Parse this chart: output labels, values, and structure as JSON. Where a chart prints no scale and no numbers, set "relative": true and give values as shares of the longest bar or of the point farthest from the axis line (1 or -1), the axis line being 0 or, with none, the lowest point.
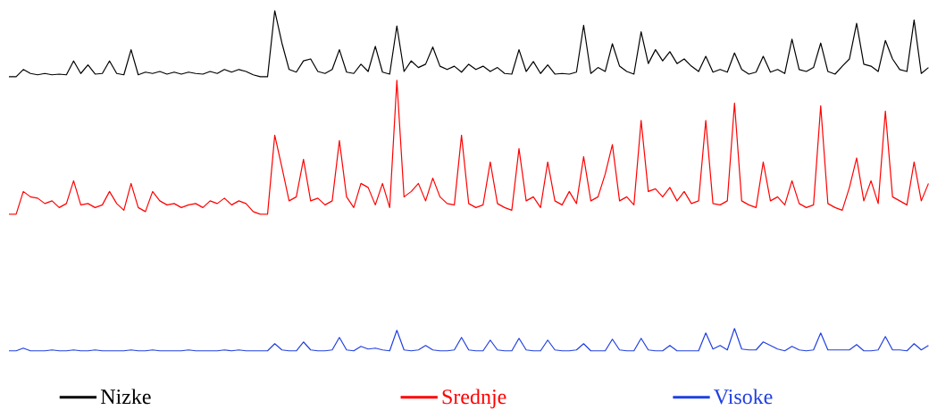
{
  "chart_data": [
    {
      "type": "line",
      "relative": true,
      "legend": "bottom",
      "categories": [
        null,
        null,
        null,
        null,
        null,
        null,
        null,
        null,
        null,
        null,
        null,
        null,
        null,
        null,
        null,
        null,
        null,
        null,
        null,
        null,
        null,
        null,
        null,
        null,
        null,
        null,
        null,
        null,
        null,
        null,
        null,
        null,
        null,
        null,
        null,
        null,
        null,
        null,
        null,
        null,
        null,
        null,
        null,
        null,
        null,
        null,
        null,
        null,
        null,
        null,
        null,
        null,
        null,
        null,
        null,
        null,
        null,
        null,
        null,
        null,
        null,
        null,
        null,
        null,
        null,
        null,
        null,
        null,
        null,
        null,
        null,
        null,
        null,
        null,
        null,
        null,
        null,
        null,
        null,
        null,
        null,
        null,
        null,
        null,
        null,
        null,
        null,
        null,
        null,
        null,
        null,
        null,
        null,
        null,
        null,
        null,
        null,
        null,
        null,
        null,
        null,
        null,
        null,
        null,
        null,
        null,
        null,
        null,
        null,
        null,
        null,
        null,
        null,
        null,
        null,
        null,
        null,
        null,
        null,
        null,
        null,
        null,
        null,
        null,
        null,
        null,
        null,
        null,
        null
      ],
      "series": [
        {
          "name": "Nizke",
          "color": "#000000",
          "values": [
            0,
            0,
            0.11,
            0.05,
            0.03,
            0.05,
            0.03,
            0.04,
            0.03,
            0.24,
            0.05,
            0.18,
            0.04,
            0.05,
            0.24,
            0.05,
            0.03,
            0.41,
            0.03,
            0.07,
            0.05,
            0.08,
            0.04,
            0.07,
            0.04,
            0.07,
            0.05,
            0.04,
            0.08,
            0.05,
            0.11,
            0.07,
            0.11,
            0.08,
            0.03,
            0,
            0,
            1,
            0.51,
            0.11,
            0.07,
            0.24,
            0.27,
            0.08,
            0.05,
            0.11,
            0.41,
            0.07,
            0.05,
            0.19,
            0.08,
            0.46,
            0.07,
            0.04,
            0.77,
            0.08,
            0.24,
            0.14,
            0.19,
            0.45,
            0.16,
            0.11,
            0.16,
            0.07,
            0.19,
            0.11,
            0.16,
            0.08,
            0.14,
            0.05,
            0.04,
            0.41,
            0.08,
            0.23,
            0.05,
            0.18,
            0.04,
            0.05,
            0.04,
            0.07,
            0.78,
            0.05,
            0.14,
            0.08,
            0.5,
            0.16,
            0.08,
            0.04,
            0.68,
            0.2,
            0.41,
            0.24,
            0.38,
            0.2,
            0.27,
            0.16,
            0.08,
            0.31,
            0.07,
            0.11,
            0.07,
            0.36,
            0.11,
            0.04,
            0.07,
            0.31,
            0.07,
            0.11,
            0.05,
            0.57,
            0.11,
            0.08,
            0.14,
            0.51,
            0.08,
            0.04,
            0.16,
            0.27,
            0.81,
            0.19,
            0.16,
            0.08,
            0.55,
            0.27,
            0.11,
            0.08,
            0.86,
            0.05,
            0.14
          ]
        }
      ]
    },
    {
      "type": "line",
      "relative": true,
      "legend": "bottom",
      "categories": [
        null,
        null,
        null,
        null,
        null,
        null,
        null,
        null,
        null,
        null,
        null,
        null,
        null,
        null,
        null,
        null,
        null,
        null,
        null,
        null,
        null,
        null,
        null,
        null,
        null,
        null,
        null,
        null,
        null,
        null,
        null,
        null,
        null,
        null,
        null,
        null,
        null,
        null,
        null,
        null,
        null,
        null,
        null,
        null,
        null,
        null,
        null,
        null,
        null,
        null,
        null,
        null,
        null,
        null,
        null,
        null,
        null,
        null,
        null,
        null,
        null,
        null,
        null,
        null,
        null,
        null,
        null,
        null,
        null,
        null,
        null,
        null,
        null,
        null,
        null,
        null,
        null,
        null,
        null,
        null,
        null,
        null,
        null,
        null,
        null,
        null,
        null,
        null,
        null,
        null,
        null,
        null,
        null,
        null,
        null,
        null,
        null,
        null,
        null,
        null,
        null,
        null,
        null,
        null,
        null,
        null,
        null,
        null,
        null,
        null,
        null,
        null,
        null,
        null,
        null,
        null,
        null,
        null,
        null,
        null,
        null,
        null,
        null,
        null,
        null,
        null,
        null,
        null,
        null
      ],
      "series": [
        {
          "name": "Srednje",
          "color": "#ff0000",
          "values": [
            0,
            0,
            0.17,
            0.13,
            0.12,
            0.08,
            0.1,
            0.05,
            0.08,
            0.25,
            0.07,
            0.08,
            0.05,
            0.07,
            0.17,
            0.08,
            0.03,
            0.23,
            0.05,
            0.02,
            0.17,
            0.1,
            0.07,
            0.08,
            0.05,
            0.07,
            0.08,
            0.05,
            0.1,
            0.08,
            0.12,
            0.07,
            0.1,
            0.08,
            0.02,
            0,
            0,
            0.59,
            0.35,
            0.1,
            0.13,
            0.41,
            0.1,
            0.12,
            0.07,
            0.1,
            0.55,
            0.13,
            0.05,
            0.23,
            0.2,
            0.07,
            0.23,
            0.05,
            1,
            0.13,
            0.17,
            0.23,
            0.1,
            0.27,
            0.13,
            0.08,
            0.07,
            0.59,
            0.08,
            0.05,
            0.07,
            0.39,
            0.08,
            0.05,
            0.03,
            0.49,
            0.1,
            0.13,
            0.05,
            0.39,
            0.1,
            0.07,
            0.17,
            0.08,
            0.43,
            0.1,
            0.13,
            0.3,
            0.52,
            0.1,
            0.13,
            0.07,
            0.7,
            0.17,
            0.19,
            0.13,
            0.2,
            0.1,
            0.17,
            0.08,
            0.1,
            0.7,
            0.08,
            0.07,
            0.1,
            0.83,
            0.1,
            0.07,
            0.05,
            0.39,
            0.1,
            0.13,
            0.07,
            0.25,
            0.08,
            0.05,
            0.07,
            0.81,
            0.08,
            0.05,
            0.03,
            0.2,
            0.42,
            0.1,
            0.25,
            0.08,
            0.77,
            0.13,
            0.1,
            0.07,
            0.39,
            0.1,
            0.23
          ]
        }
      ]
    },
    {
      "type": "line",
      "relative": true,
      "legend": "bottom",
      "categories": [
        null,
        null,
        null,
        null,
        null,
        null,
        null,
        null,
        null,
        null,
        null,
        null,
        null,
        null,
        null,
        null,
        null,
        null,
        null,
        null,
        null,
        null,
        null,
        null,
        null,
        null,
        null,
        null,
        null,
        null,
        null,
        null,
        null,
        null,
        null,
        null,
        null,
        null,
        null,
        null,
        null,
        null,
        null,
        null,
        null,
        null,
        null,
        null,
        null,
        null,
        null,
        null,
        null,
        null,
        null,
        null,
        null,
        null,
        null,
        null,
        null,
        null,
        null,
        null,
        null,
        null,
        null,
        null,
        null,
        null,
        null,
        null,
        null,
        null,
        null,
        null,
        null,
        null,
        null,
        null,
        null,
        null,
        null,
        null,
        null,
        null,
        null,
        null,
        null,
        null,
        null,
        null,
        null,
        null,
        null,
        null,
        null,
        null,
        null,
        null,
        null,
        null,
        null,
        null,
        null,
        null,
        null,
        null,
        null,
        null,
        null,
        null,
        null,
        null,
        null,
        null,
        null,
        null,
        null,
        null,
        null,
        null,
        null,
        null,
        null,
        null,
        null,
        null,
        null
      ],
      "series": [
        {
          "name": "Visoke",
          "color": "#2040e0",
          "values": [
            0,
            0,
            0.12,
            0,
            0,
            0,
            0.04,
            0,
            0,
            0.04,
            0,
            0,
            0.04,
            0,
            0,
            0,
            0,
            0.04,
            0,
            0,
            0.04,
            0,
            0,
            0,
            0,
            0.04,
            0,
            0,
            0,
            0,
            0.04,
            0,
            0.04,
            0,
            0,
            0,
            0,
            0.32,
            0.04,
            0,
            0,
            0.4,
            0.04,
            0,
            0,
            0.04,
            0.6,
            0.04,
            0,
            0.2,
            0.08,
            0.12,
            0.04,
            0,
            0.92,
            0.04,
            0,
            0.04,
            0.24,
            0.04,
            0,
            0,
            0.04,
            0.6,
            0.04,
            0,
            0,
            0.48,
            0.04,
            0,
            0,
            0.56,
            0.04,
            0,
            0,
            0.48,
            0.04,
            0,
            0,
            0.04,
            0.32,
            0,
            0,
            0,
            0.52,
            0.04,
            0,
            0,
            0.56,
            0.04,
            0,
            0,
            0.24,
            0,
            0,
            0,
            0,
            0.8,
            0.08,
            0.24,
            0.04,
            1,
            0.08,
            0.04,
            0.04,
            0.4,
            0.24,
            0.08,
            0,
            0.2,
            0.04,
            0,
            0.04,
            0.8,
            0.04,
            0.04,
            0.04,
            0.04,
            0.28,
            0,
            0,
            0.04,
            0.64,
            0.04,
            0.04,
            0,
            0.32,
            0.04,
            0.24
          ]
        }
      ]
    }
  ]
}
